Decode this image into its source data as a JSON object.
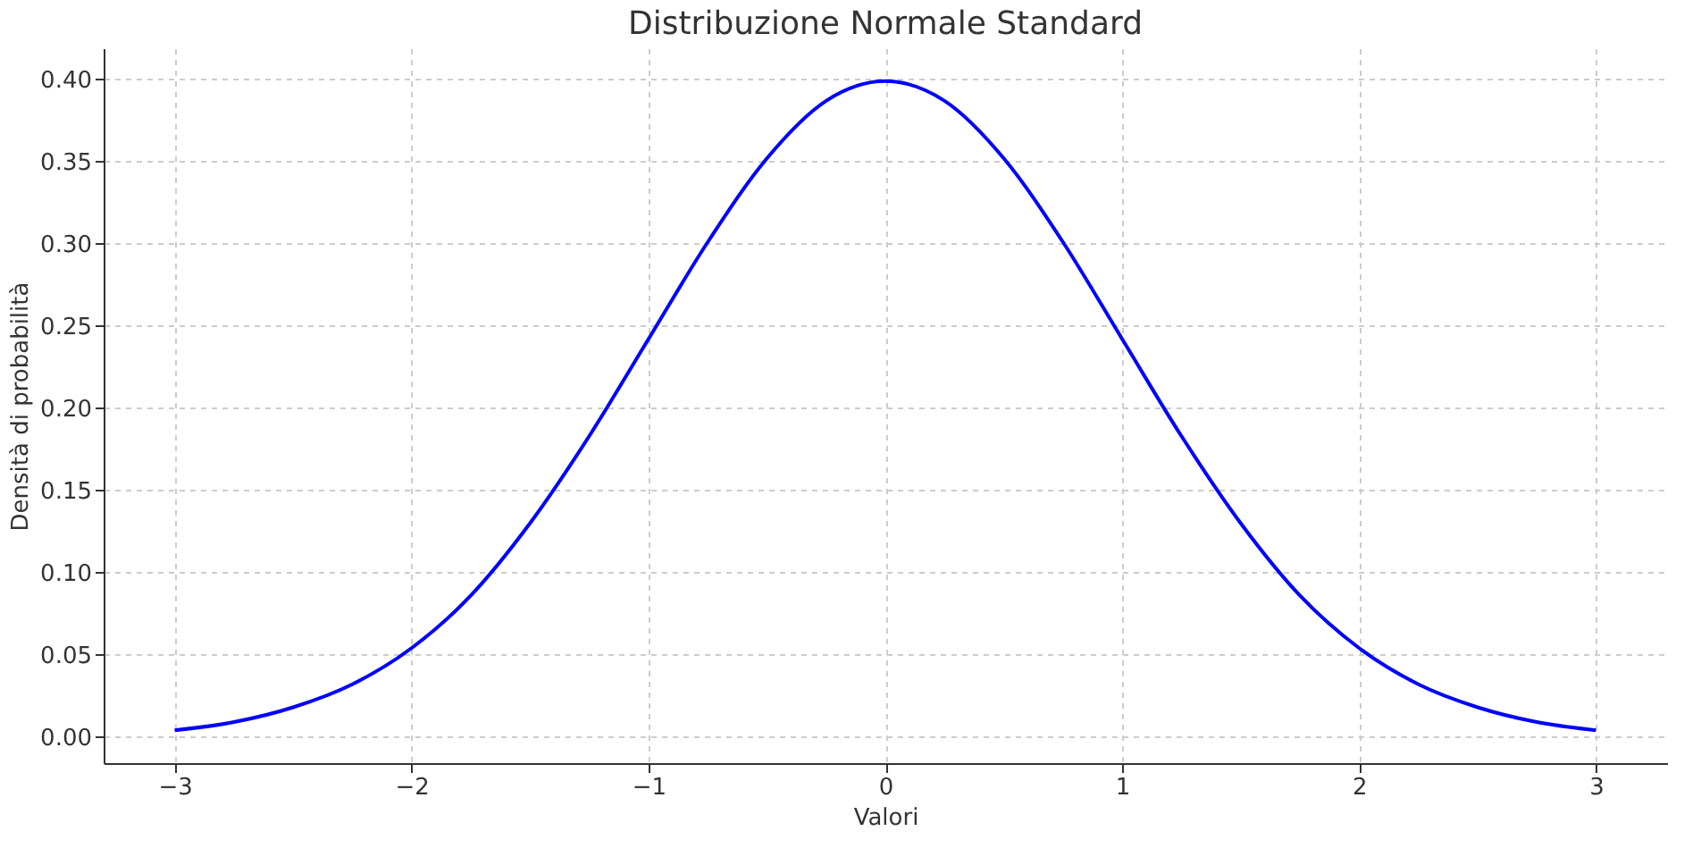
{
  "chart_data": {
    "type": "line",
    "title": "Distribuzione Normale Standard",
    "xlabel": "Valori",
    "ylabel": "Densità di probabilità",
    "x": [
      -3,
      -2.75,
      -2.5,
      -2.25,
      -2,
      -1.75,
      -1.5,
      -1.25,
      -1,
      -0.75,
      -0.5,
      -0.25,
      0,
      0.25,
      0.5,
      0.75,
      1,
      1.25,
      1.5,
      1.75,
      2,
      2.25,
      2.5,
      2.75,
      3
    ],
    "series": [
      {
        "color": "#0000ff",
        "values": [
          0.004,
          0.009,
          0.018,
          0.032,
          0.054,
          0.086,
          0.13,
          0.183,
          0.242,
          0.301,
          0.352,
          0.387,
          0.399,
          0.387,
          0.352,
          0.301,
          0.242,
          0.183,
          0.13,
          0.086,
          0.054,
          0.032,
          0.018,
          0.009,
          0.004
        ]
      }
    ],
    "xlim": [
      -3.3,
      3.3
    ],
    "ylim": [
      -0.016,
      0.419
    ],
    "xticks": [
      {
        "value": -3,
        "label": "−3"
      },
      {
        "value": -2,
        "label": "−2"
      },
      {
        "value": -1,
        "label": "−1"
      },
      0,
      1,
      2,
      3
    ],
    "yticks": [
      {
        "value": 0,
        "label": "0.00"
      },
      0.05,
      {
        "value": 0.1,
        "label": "0.10"
      },
      0.15,
      {
        "value": 0.2,
        "label": "0.20"
      },
      0.25,
      {
        "value": 0.3,
        "label": "0.30"
      },
      0.35,
      {
        "value": 0.4,
        "label": "0.40"
      }
    ],
    "grid": true,
    "line_style": "solid",
    "marker": "none"
  }
}
